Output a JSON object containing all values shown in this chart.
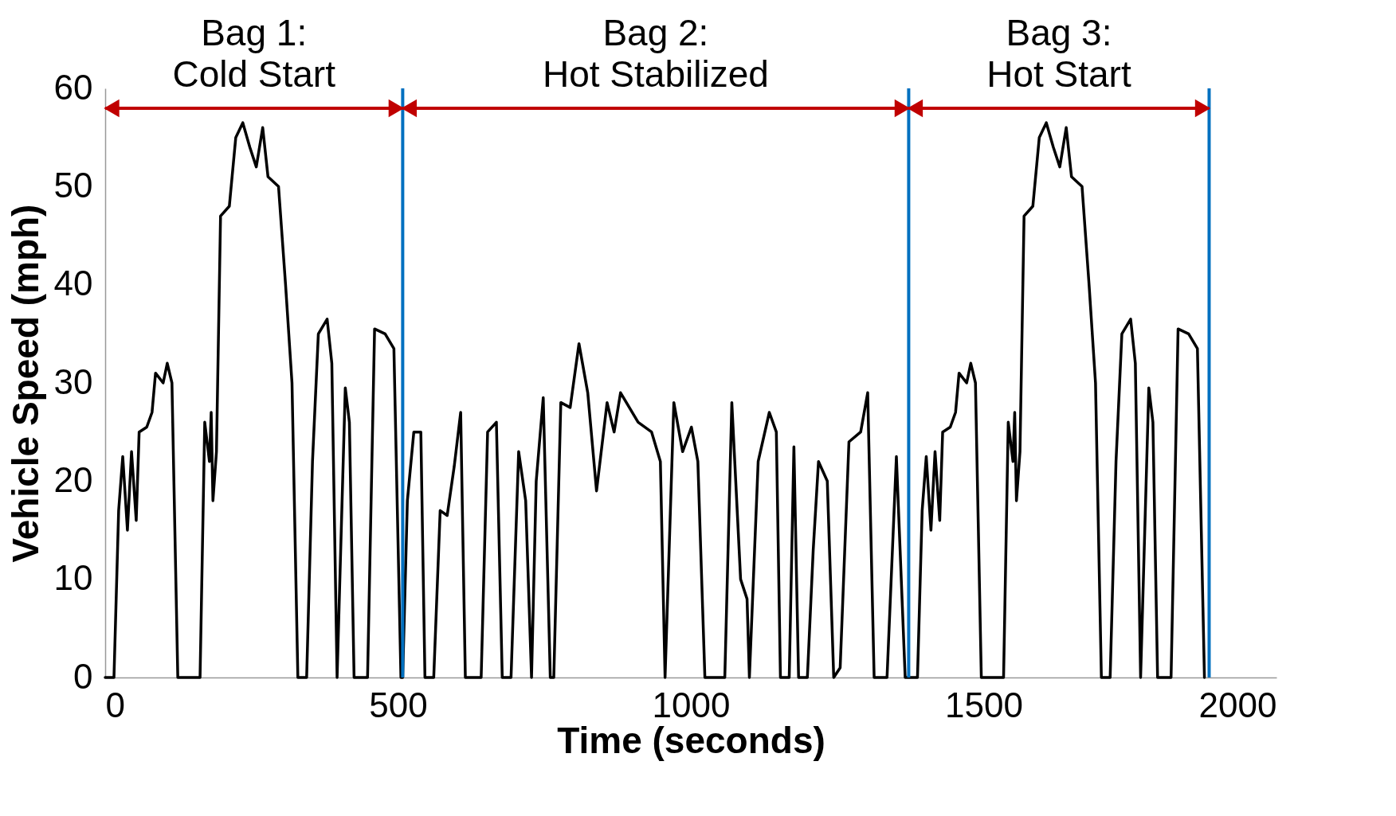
{
  "chart_data": {
    "type": "line",
    "xlabel": "Time (seconds)",
    "ylabel": "Vehicle Speed (mph)",
    "xlim": [
      0,
      2000
    ],
    "xticks": [
      0,
      500,
      1000,
      1500,
      2000
    ],
    "ylim": [
      0,
      60
    ],
    "yticks": [
      0,
      10,
      20,
      30,
      40,
      50,
      60
    ],
    "grid": false,
    "marker": "none",
    "line_style": "solid",
    "series": [
      {
        "color": "#000000",
        "x": [
          0,
          15,
          23,
          30,
          38,
          45,
          53,
          58,
          71,
          80,
          86,
          99,
          106,
          114,
          124,
          162,
          170,
          178,
          181,
          184,
          190,
          197,
          212,
          223,
          235,
          247,
          258,
          269,
          278,
          296,
          308,
          319,
          329,
          344,
          354,
          364,
          379,
          387,
          396,
          410,
          417,
          425,
          448,
          460,
          478,
          493,
          505,
          508,
          516,
          527,
          539,
          546,
          561,
          572,
          584,
          596,
          607,
          615,
          642,
          653,
          668,
          678,
          693,
          706,
          718,
          728,
          736,
          748,
          760,
          766,
          778,
          794,
          809,
          824,
          839,
          857,
          869,
          880,
          895,
          910,
          933,
          948,
          956,
          971,
          986,
          1001,
          1012,
          1024,
          1058,
          1070,
          1085,
          1096,
          1100,
          1115,
          1134,
          1146,
          1153,
          1168,
          1176,
          1184,
          1199,
          1209,
          1218,
          1233,
          1244,
          1255,
          1270,
          1290,
          1302,
          1313,
          1335,
          1351,
          1366,
          1372,
          1387,
          1395,
          1402,
          1410,
          1417,
          1425,
          1430,
          1443,
          1452,
          1458,
          1471,
          1478,
          1486,
          1496,
          1534,
          1542,
          1550,
          1553,
          1556,
          1562,
          1569,
          1584,
          1595,
          1607,
          1619,
          1630,
          1641,
          1650,
          1668,
          1680,
          1691,
          1701,
          1716,
          1726,
          1736,
          1751,
          1759,
          1768,
          1782,
          1789,
          1797,
          1820,
          1832,
          1850,
          1865,
          1877
        ],
        "values": [
          0,
          0,
          17,
          22.5,
          15,
          23,
          16,
          25,
          25.5,
          27,
          31,
          30,
          32,
          30,
          0,
          0,
          26,
          22,
          27,
          18,
          23,
          47,
          48,
          55,
          56.5,
          54,
          52,
          56,
          51,
          50,
          40,
          30,
          0,
          0,
          22,
          35,
          36.5,
          32,
          0,
          29.5,
          26,
          0,
          0,
          35.5,
          35,
          33.5,
          0,
          0,
          18,
          25,
          25,
          0,
          0,
          17,
          16.5,
          21.5,
          27,
          0,
          0,
          25,
          26,
          0,
          0,
          23,
          18,
          0,
          20,
          28.5,
          0,
          0,
          28,
          27.5,
          34,
          29,
          19,
          28,
          25,
          29,
          27.5,
          26,
          25,
          22,
          0,
          28,
          23,
          25.5,
          22,
          0,
          0,
          28,
          10,
          8,
          0,
          22,
          27,
          25,
          0,
          0,
          23.5,
          0,
          0,
          13,
          22,
          20,
          0,
          1,
          24,
          25,
          29,
          0,
          0,
          22.5,
          0,
          0,
          0,
          17,
          22.5,
          15,
          23,
          16,
          25,
          25.5,
          27,
          31,
          30,
          32,
          30,
          0,
          0,
          26,
          22,
          27,
          18,
          23,
          47,
          48,
          55,
          56.5,
          54,
          52,
          56,
          51,
          50,
          40,
          30,
          0,
          0,
          22,
          35,
          36.5,
          32,
          0,
          29.5,
          26,
          0,
          0,
          35.5,
          35,
          33.5,
          0
        ]
      }
    ],
    "ref_lines": [
      {
        "axis": "x",
        "value": 508,
        "color": "#0070c0"
      },
      {
        "axis": "x",
        "value": 1372,
        "color": "#0070c0"
      },
      {
        "axis": "x",
        "value": 1885,
        "color": "#0070c0"
      }
    ],
    "annotations": [
      "Bag 1:\nCold Start",
      "Bag 2:\nHot Stabilized",
      "Bag 3:\nHot Start"
    ]
  }
}
